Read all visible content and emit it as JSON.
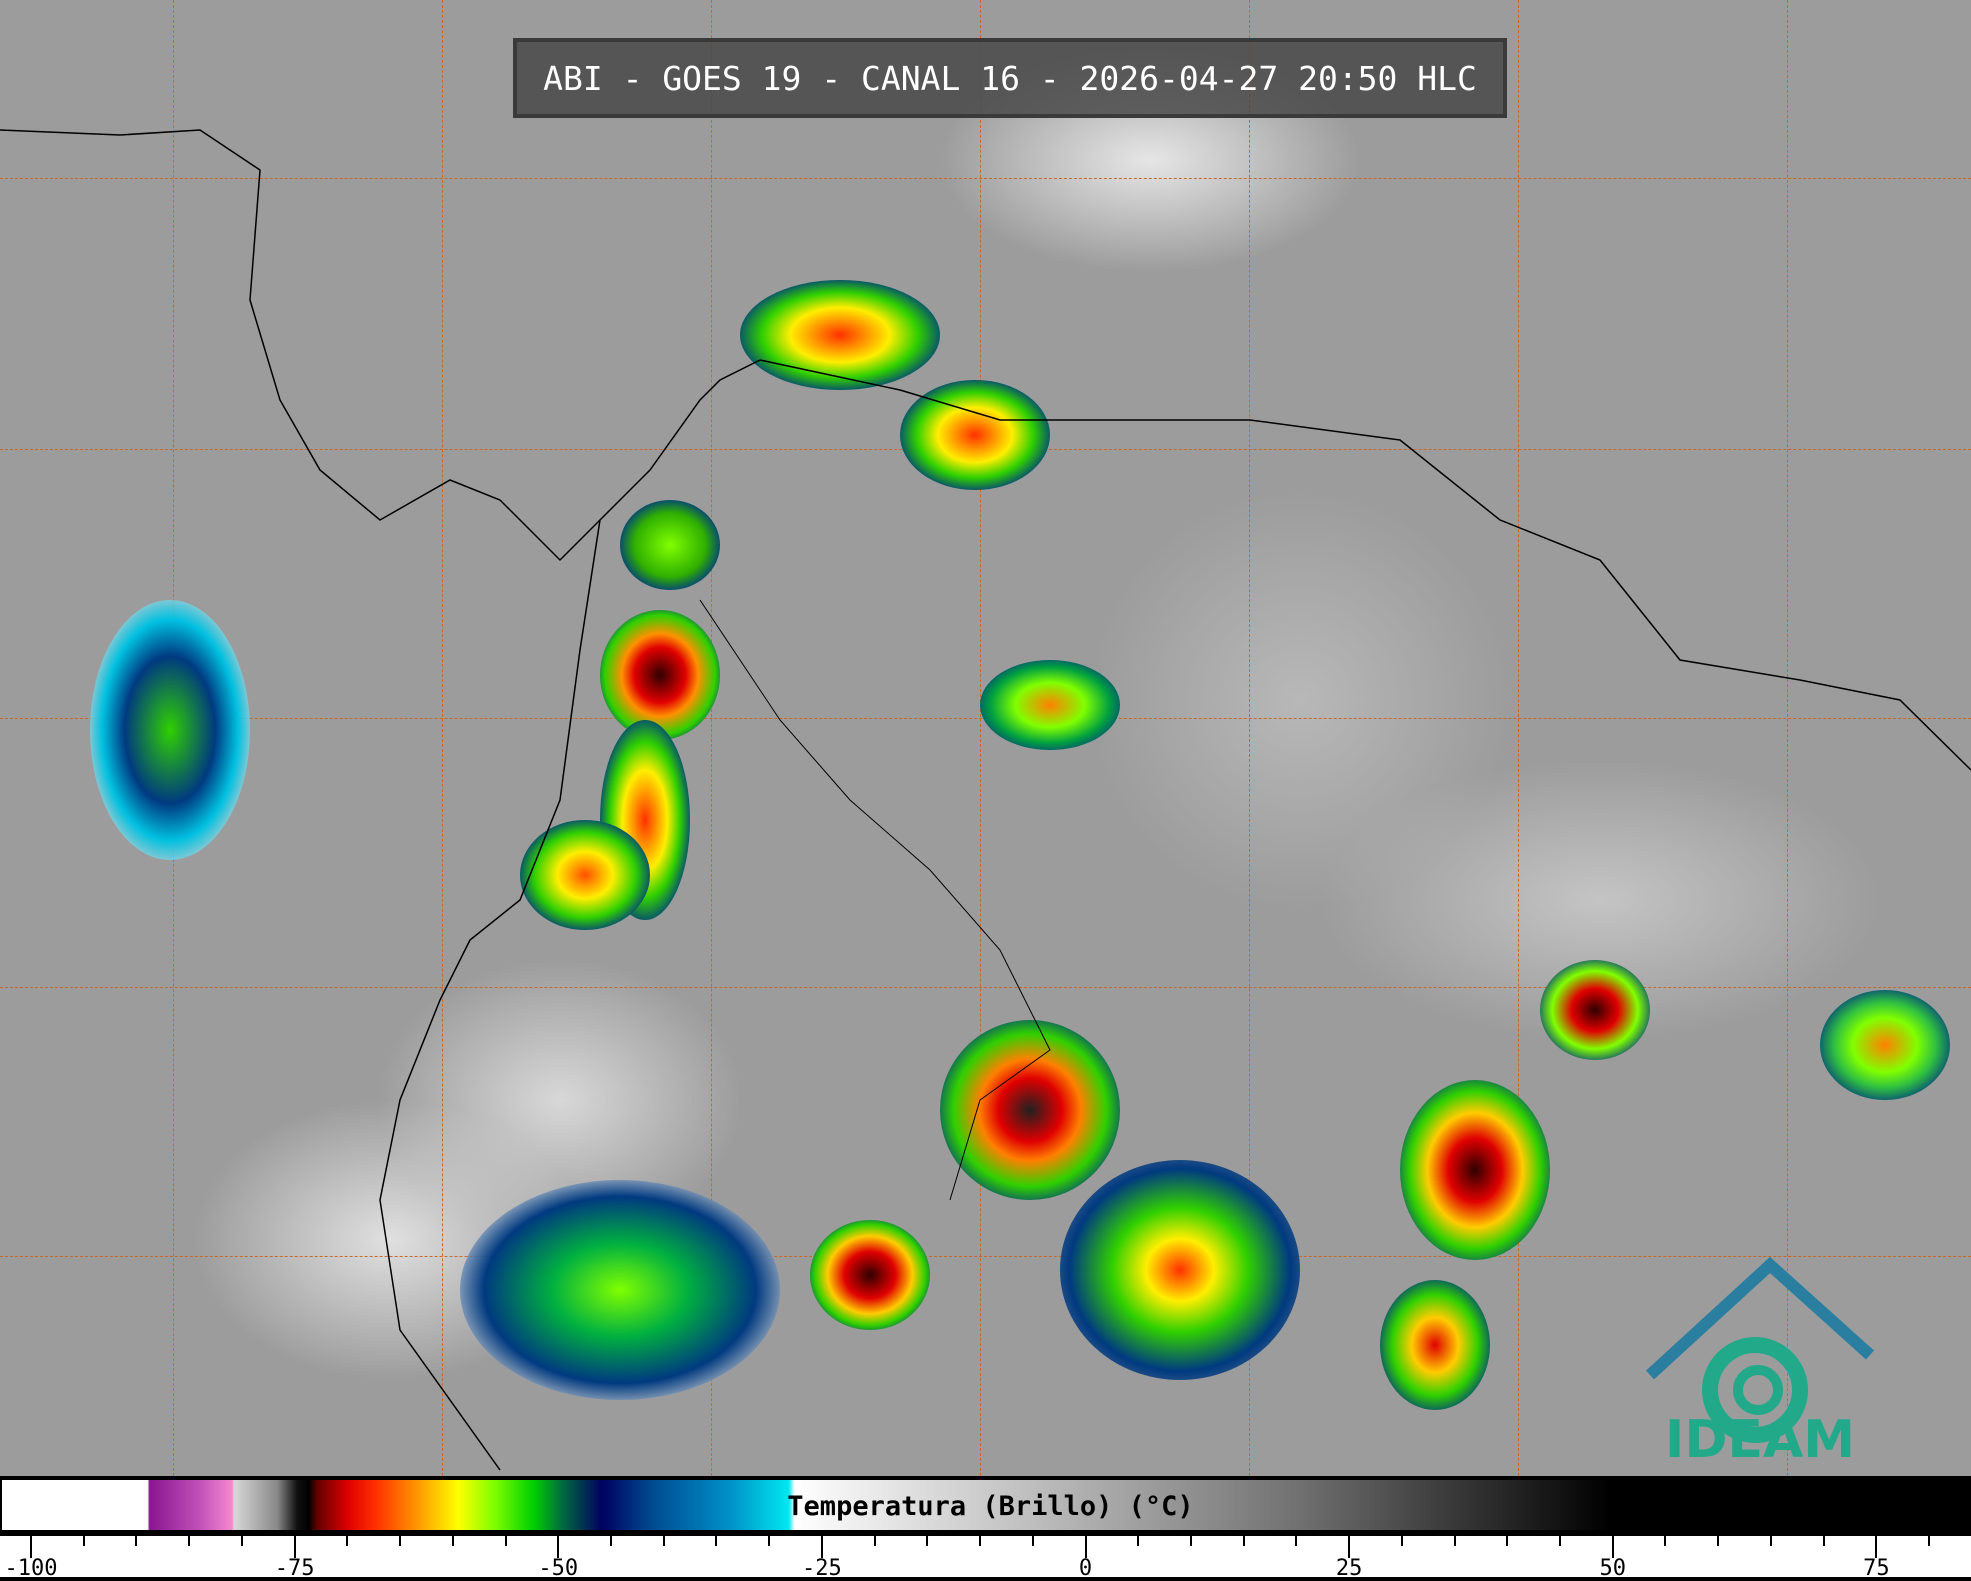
{
  "title": "ABI - GOES 19 - CANAL 16 - 2026-04-27 20:50 HLC",
  "colorbar": {
    "label": "Temperatura (Brillo) (°C)",
    "unit": "°C",
    "min": -100,
    "max": 85,
    "ticks": [
      "-100",
      "-75",
      "-50",
      "-25",
      "0",
      "25",
      "50",
      "75"
    ]
  },
  "logo": {
    "text": "IDEAM",
    "color": "#22a98a"
  },
  "colors": {
    "grid": "#c8692a",
    "background_gray": "#9c9c9c"
  }
}
